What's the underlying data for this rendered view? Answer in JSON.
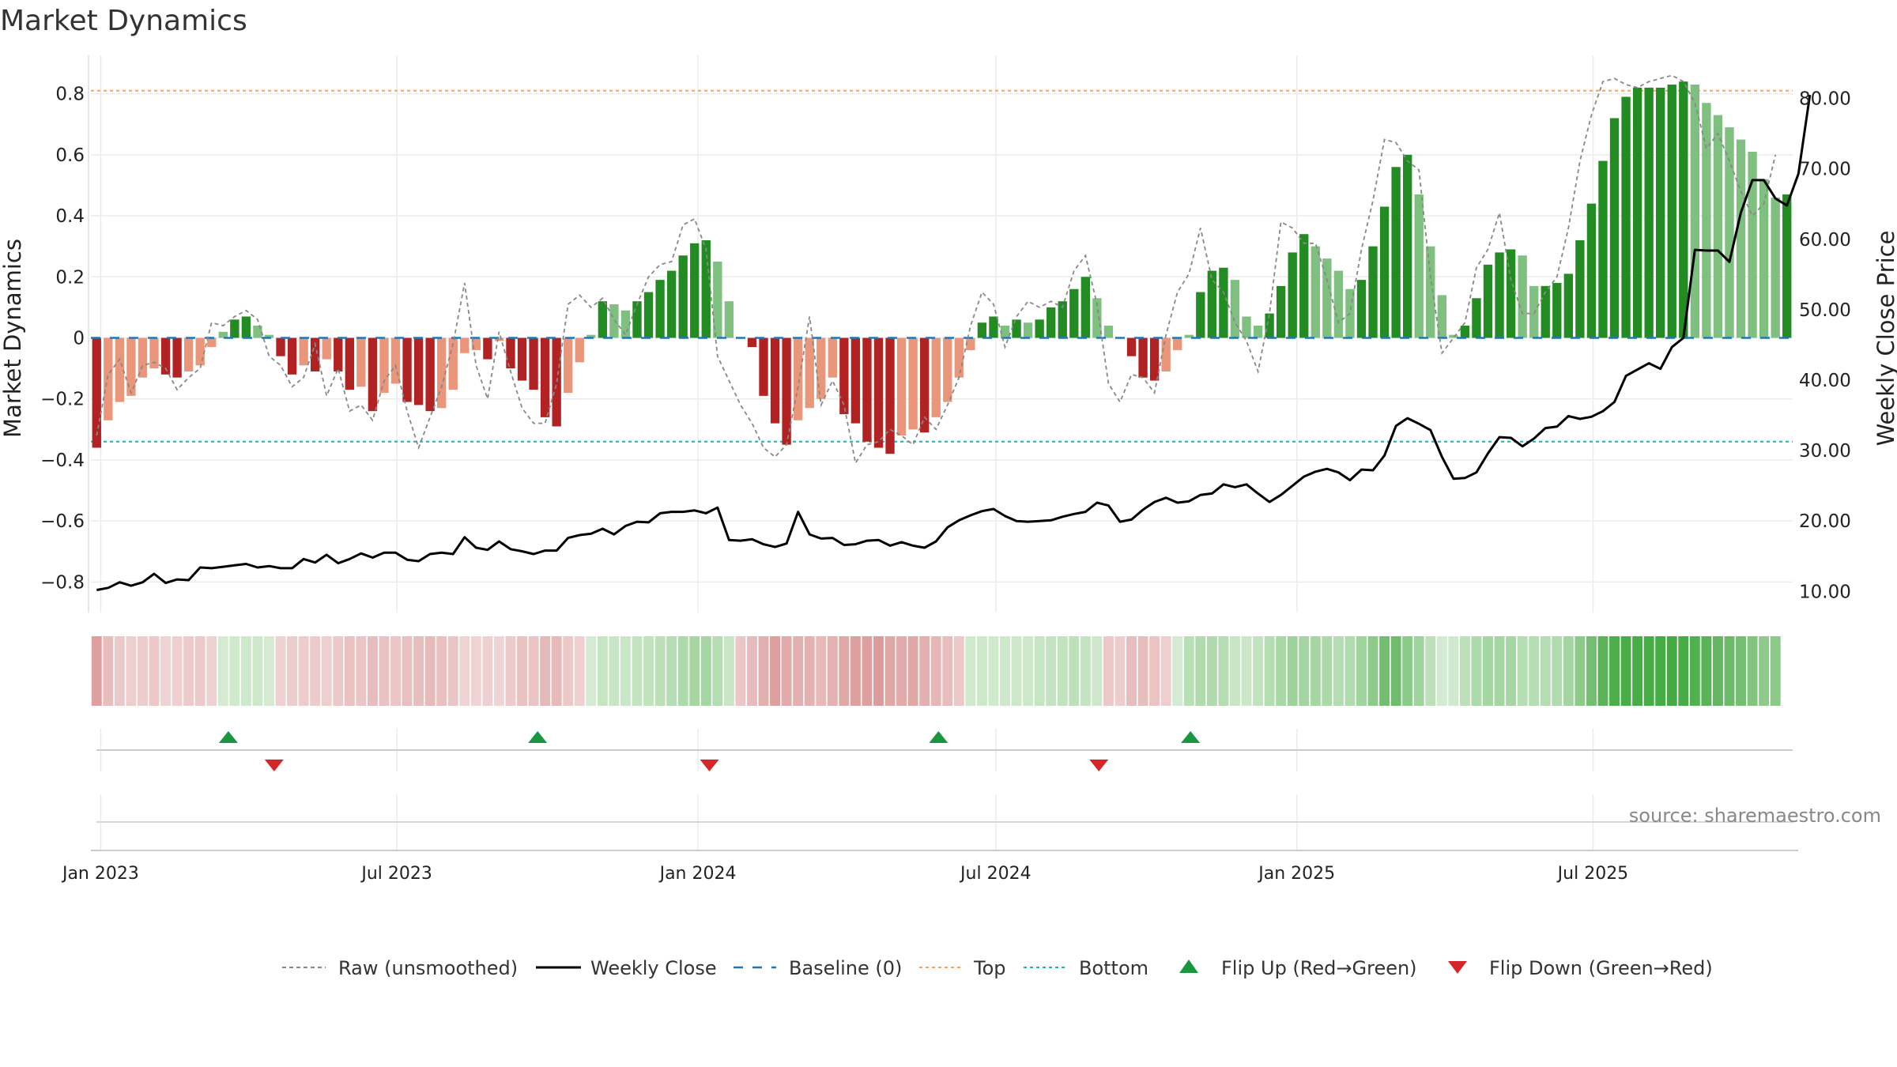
{
  "chart_data": {
    "type": "bar",
    "title": "Market Dynamics",
    "ylabel_left": "Market Dynamics",
    "ylabel_right": "Weekly Close Price",
    "ylim_left": [
      -0.9,
      0.9
    ],
    "ylim_right": [
      7.0,
      85.0
    ],
    "yticks_left": [
      "0.8",
      "0.6",
      "0.4",
      "0.2",
      "0",
      "−0.2",
      "−0.4",
      "−0.6",
      "−0.8"
    ],
    "yticks_right": [
      "80.00",
      "70.00",
      "60.00",
      "50.00",
      "40.00",
      "30.00",
      "20.00",
      "10.00"
    ],
    "x_start": "2022-12-26",
    "x_end": "2025-10-31",
    "xticks": [
      {
        "date": "2023-01-01",
        "label": "Jan 2023"
      },
      {
        "date": "2023-07-01",
        "label": "Jul 2023"
      },
      {
        "date": "2024-01-01",
        "label": "Jan 2024"
      },
      {
        "date": "2024-07-01",
        "label": "Jul 2024"
      },
      {
        "date": "2025-01-01",
        "label": "Jan 2025"
      },
      {
        "date": "2025-07-01",
        "label": "Jul 2025"
      }
    ],
    "top_level": 0.81,
    "bottom_level": -0.34,
    "baseline": 0,
    "market_dynamics": [
      -0.36,
      -0.27,
      -0.21,
      -0.19,
      -0.13,
      -0.1,
      -0.12,
      -0.13,
      -0.11,
      -0.09,
      -0.03,
      0.02,
      0.06,
      0.07,
      0.04,
      0.01,
      -0.06,
      -0.12,
      -0.09,
      -0.11,
      -0.07,
      -0.11,
      -0.17,
      -0.16,
      -0.24,
      -0.18,
      -0.15,
      -0.21,
      -0.22,
      -0.24,
      -0.23,
      -0.17,
      -0.05,
      -0.04,
      -0.07,
      -0.01,
      -0.1,
      -0.14,
      -0.17,
      -0.26,
      -0.29,
      -0.18,
      -0.08,
      0.01,
      0.12,
      0.11,
      0.09,
      0.12,
      0.15,
      0.19,
      0.22,
      0.27,
      0.31,
      0.32,
      0.25,
      0.12,
      0.0,
      -0.03,
      -0.19,
      -0.28,
      -0.35,
      -0.27,
      -0.23,
      -0.2,
      -0.13,
      -0.25,
      -0.28,
      -0.34,
      -0.36,
      -0.38,
      -0.32,
      -0.3,
      -0.31,
      -0.26,
      -0.21,
      -0.13,
      -0.04,
      0.05,
      0.07,
      0.04,
      0.06,
      0.05,
      0.06,
      0.1,
      0.12,
      0.16,
      0.2,
      0.13,
      0.04,
      0.0,
      -0.06,
      -0.13,
      -0.14,
      -0.11,
      -0.04,
      0.01,
      0.15,
      0.22,
      0.23,
      0.19,
      0.07,
      0.04,
      0.08,
      0.17,
      0.28,
      0.34,
      0.3,
      0.26,
      0.22,
      0.16,
      0.19,
      0.3,
      0.43,
      0.56,
      0.6,
      0.47,
      0.3,
      0.14,
      0.01,
      0.04,
      0.13,
      0.24,
      0.28,
      0.29,
      0.27,
      0.17,
      0.17,
      0.18,
      0.21,
      0.32,
      0.44,
      0.58,
      0.72,
      0.79,
      0.82,
      0.82,
      0.82,
      0.83,
      0.84,
      0.83,
      0.77,
      0.73,
      0.69,
      0.65,
      0.61,
      0.52,
      0.46,
      0.47
    ],
    "raw_unsmoothed": [
      -0.32,
      -0.12,
      -0.07,
      -0.18,
      -0.09,
      -0.08,
      -0.1,
      -0.17,
      -0.13,
      -0.1,
      0.05,
      0.04,
      0.07,
      0.09,
      0.06,
      -0.06,
      -0.09,
      -0.16,
      -0.13,
      -0.02,
      -0.19,
      -0.1,
      -0.24,
      -0.22,
      -0.27,
      -0.14,
      -0.09,
      -0.24,
      -0.36,
      -0.26,
      -0.16,
      -0.02,
      0.18,
      -0.09,
      -0.2,
      0.02,
      -0.11,
      -0.23,
      -0.28,
      -0.28,
      -0.15,
      0.11,
      0.14,
      0.1,
      0.13,
      0.06,
      0.01,
      0.11,
      0.2,
      0.24,
      0.25,
      0.37,
      0.39,
      0.29,
      -0.06,
      -0.14,
      -0.22,
      -0.28,
      -0.36,
      -0.39,
      -0.35,
      -0.16,
      0.07,
      -0.22,
      -0.14,
      -0.22,
      -0.41,
      -0.35,
      -0.34,
      -0.3,
      -0.32,
      -0.35,
      -0.26,
      -0.3,
      -0.22,
      -0.13,
      0.04,
      0.15,
      0.11,
      -0.03,
      0.07,
      0.12,
      0.1,
      0.12,
      0.1,
      0.22,
      0.27,
      0.11,
      -0.15,
      -0.21,
      -0.12,
      -0.13,
      -0.18,
      0.01,
      0.15,
      0.21,
      0.36,
      0.19,
      0.15,
      0.05,
      -0.01,
      -0.11,
      0.08,
      0.38,
      0.36,
      0.31,
      0.31,
      0.19,
      0.05,
      0.08,
      0.29,
      0.45,
      0.65,
      0.64,
      0.58,
      0.55,
      0.2,
      -0.05,
      0.0,
      0.05,
      0.23,
      0.29,
      0.41,
      0.19,
      0.08,
      0.08,
      0.15,
      0.2,
      0.36,
      0.58,
      0.73,
      0.84,
      0.85,
      0.83,
      0.82,
      0.84,
      0.85,
      0.86,
      0.84,
      0.77,
      0.62,
      0.67,
      0.58,
      0.48,
      0.4,
      0.44,
      0.6
    ],
    "weekly_close": [
      10.2,
      10.5,
      11.3,
      10.8,
      11.3,
      12.5,
      11.2,
      11.7,
      11.6,
      13.4,
      13.3,
      13.5,
      13.7,
      13.9,
      13.4,
      13.6,
      13.3,
      13.3,
      14.6,
      14.1,
      15.2,
      14.0,
      14.6,
      15.4,
      14.8,
      15.5,
      15.5,
      14.5,
      14.3,
      15.3,
      15.5,
      15.3,
      17.7,
      16.2,
      15.9,
      17.1,
      16.0,
      15.7,
      15.3,
      15.8,
      15.8,
      17.6,
      18.0,
      18.2,
      18.9,
      18.1,
      19.3,
      19.9,
      19.8,
      21.1,
      21.3,
      21.3,
      21.5,
      21.1,
      21.9,
      17.3,
      17.2,
      17.4,
      16.7,
      16.3,
      16.8,
      21.3,
      18.1,
      17.5,
      17.6,
      16.6,
      16.7,
      17.2,
      17.3,
      16.5,
      17.0,
      16.5,
      16.2,
      17.1,
      19.1,
      20.1,
      20.8,
      21.4,
      21.7,
      20.7,
      20.0,
      19.9,
      20.0,
      20.1,
      20.6,
      21.0,
      21.3,
      22.6,
      22.2,
      19.9,
      20.2,
      21.6,
      22.7,
      23.3,
      22.6,
      22.8,
      23.7,
      23.9,
      25.2,
      24.8,
      25.2,
      23.9,
      22.7,
      23.7,
      25.0,
      26.3,
      27.0,
      27.4,
      26.9,
      25.8,
      27.3,
      27.2,
      29.3,
      33.5,
      34.6,
      33.8,
      32.9,
      29.1,
      26.0,
      26.1,
      26.9,
      29.6,
      31.9,
      31.8,
      30.6,
      31.7,
      33.2,
      33.4,
      34.9,
      34.5,
      34.8,
      35.6,
      36.9,
      40.6,
      41.5,
      42.4,
      41.6,
      44.7,
      46.0,
      58.5,
      58.4,
      58.4,
      56.8,
      63.8,
      68.4,
      68.4,
      65.8,
      64.8,
      69.3,
      80.5
    ],
    "regime_bars": [
      {
        "color": "#dd9f9f",
        "op": 1
      },
      {
        "color": "#e8bdbd",
        "op": 1
      },
      {
        "color": "#ecc8c8",
        "op": 1
      },
      {
        "color": "#eecfcf",
        "op": 1
      },
      {
        "color": "#edcccc",
        "op": 1
      },
      {
        "color": "#ecc8c8",
        "op": 1
      },
      {
        "color": "#efd2d2",
        "op": 1
      },
      {
        "color": "#eecece",
        "op": 1
      },
      {
        "color": "#edcbcb",
        "op": 1
      },
      {
        "color": "#edcaca",
        "op": 1
      },
      {
        "color": "#efd1d1",
        "op": 1
      },
      {
        "color": "#d4ead2",
        "op": 1
      },
      {
        "color": "#cfe9cc",
        "op": 1
      },
      {
        "color": "#cde8ca",
        "op": 1
      },
      {
        "color": "#cfe8cc",
        "op": 1
      },
      {
        "color": "#d4ead2",
        "op": 1
      },
      {
        "color": "#efd1d1",
        "op": 1
      },
      {
        "color": "#edcccc",
        "op": 1
      },
      {
        "color": "#edcccc",
        "op": 1
      },
      {
        "color": "#edcbcb",
        "op": 1
      },
      {
        "color": "#eecfcf",
        "op": 1
      },
      {
        "color": "#ecc8c8",
        "op": 1
      },
      {
        "color": "#eac2c2",
        "op": 1
      },
      {
        "color": "#ebc4c4",
        "op": 1
      },
      {
        "color": "#e8bdbd",
        "op": 1
      },
      {
        "color": "#eac2c2",
        "op": 1
      },
      {
        "color": "#ecc6c6",
        "op": 1
      },
      {
        "color": "#e9c0c0",
        "op": 1
      },
      {
        "color": "#e8bdbd",
        "op": 1
      },
      {
        "color": "#e7baba",
        "op": 1
      },
      {
        "color": "#e9c0c0",
        "op": 1
      },
      {
        "color": "#ebc5c5",
        "op": 1
      },
      {
        "color": "#efd3d3",
        "op": 1
      },
      {
        "color": "#efd3d3",
        "op": 1
      },
      {
        "color": "#eed0d0",
        "op": 1
      },
      {
        "color": "#efd4d4",
        "op": 1
      },
      {
        "color": "#edcaca",
        "op": 1
      },
      {
        "color": "#eac2c2",
        "op": 1
      },
      {
        "color": "#eac3c3",
        "op": 1
      },
      {
        "color": "#e6b9b9",
        "op": 1
      },
      {
        "color": "#e7baba",
        "op": 1
      },
      {
        "color": "#ecc8c8",
        "op": 1
      },
      {
        "color": "#eed0d0",
        "op": 1
      },
      {
        "color": "#d4ead2",
        "op": 1
      },
      {
        "color": "#c6e5c3",
        "op": 1
      },
      {
        "color": "#c8e6c5",
        "op": 1
      },
      {
        "color": "#c9e6c6",
        "op": 1
      },
      {
        "color": "#c4e4c1",
        "op": 1
      },
      {
        "color": "#c0e3bd",
        "op": 1
      },
      {
        "color": "#bbe0b8",
        "op": 1
      },
      {
        "color": "#b6deb3",
        "op": 1
      },
      {
        "color": "#addaaa",
        "op": 1
      },
      {
        "color": "#a6d7a3",
        "op": 1
      },
      {
        "color": "#a5d7a2",
        "op": 1
      },
      {
        "color": "#b4ddb1",
        "op": 1
      },
      {
        "color": "#c8e6c5",
        "op": 1
      },
      {
        "color": "#ecc6c6",
        "op": 1
      },
      {
        "color": "#e7bbbb",
        "op": 1
      },
      {
        "color": "#e3b0b0",
        "op": 1
      },
      {
        "color": "#df9f9f",
        "op": 1
      },
      {
        "color": "#e2aaaa",
        "op": 1
      },
      {
        "color": "#e4afaf",
        "op": 1
      },
      {
        "color": "#e5b2b2",
        "op": 1
      },
      {
        "color": "#e7b9b9",
        "op": 1
      },
      {
        "color": "#e4b0b0",
        "op": 1
      },
      {
        "color": "#e1a8a8",
        "op": 1
      },
      {
        "color": "#dda0a0",
        "op": 1
      },
      {
        "color": "#dd9f9f",
        "op": 1
      },
      {
        "color": "#dd9c9c",
        "op": 1
      },
      {
        "color": "#e1a6a6",
        "op": 1
      },
      {
        "color": "#e2aaaa",
        "op": 1
      },
      {
        "color": "#e1a7a7",
        "op": 1
      },
      {
        "color": "#e4afaf",
        "op": 1
      },
      {
        "color": "#e6b7b7",
        "op": 1
      },
      {
        "color": "#e8bdbd",
        "op": 1
      },
      {
        "color": "#ecc8c8",
        "op": 1
      },
      {
        "color": "#cfe9cc",
        "op": 1
      },
      {
        "color": "#cde8ca",
        "op": 1
      },
      {
        "color": "#cfe9cc",
        "op": 1
      },
      {
        "color": "#cde8ca",
        "op": 1
      },
      {
        "color": "#cde8ca",
        "op": 1
      },
      {
        "color": "#cde8ca",
        "op": 1
      },
      {
        "color": "#c6e5c3",
        "op": 1
      },
      {
        "color": "#c4e4c1",
        "op": 1
      },
      {
        "color": "#c0e3bd",
        "op": 1
      },
      {
        "color": "#bce1b9",
        "op": 1
      },
      {
        "color": "#c4e4c1",
        "op": 1
      },
      {
        "color": "#cde8ca",
        "op": 1
      },
      {
        "color": "#ecc8c8",
        "op": 1
      },
      {
        "color": "#edcccc",
        "op": 1
      },
      {
        "color": "#e8bdbd",
        "op": 1
      },
      {
        "color": "#e8bdbd",
        "op": 1
      },
      {
        "color": "#ebc3c3",
        "op": 1
      },
      {
        "color": "#eecece",
        "op": 1
      },
      {
        "color": "#d4ead2",
        "op": 1
      },
      {
        "color": "#b8dfb5",
        "op": 1
      },
      {
        "color": "#b0dbad",
        "op": 1
      },
      {
        "color": "#afdbac",
        "op": 1
      },
      {
        "color": "#b4ddb1",
        "op": 1
      },
      {
        "color": "#c8e6c5",
        "op": 1
      },
      {
        "color": "#cbe7c8",
        "op": 1
      },
      {
        "color": "#c2e3bf",
        "op": 1
      },
      {
        "color": "#b4ddb1",
        "op": 1
      },
      {
        "color": "#a8d8a5",
        "op": 1
      },
      {
        "color": "#9dd39a",
        "op": 1
      },
      {
        "color": "#a2d59f",
        "op": 1
      },
      {
        "color": "#a6d7a3",
        "op": 1
      },
      {
        "color": "#abd9a8",
        "op": 1
      },
      {
        "color": "#b4ddb1",
        "op": 1
      },
      {
        "color": "#b0dbad",
        "op": 1
      },
      {
        "color": "#a0d49d",
        "op": 1
      },
      {
        "color": "#8ecb8b",
        "op": 1
      },
      {
        "color": "#73be70",
        "op": 1
      },
      {
        "color": "#6fbc6c",
        "op": 1
      },
      {
        "color": "#8acb87",
        "op": 1
      },
      {
        "color": "#a0d49d",
        "op": 1
      },
      {
        "color": "#bce1b9",
        "op": 1
      },
      {
        "color": "#d4ead2",
        "op": 1
      },
      {
        "color": "#cfe9cc",
        "op": 1
      },
      {
        "color": "#bce1b9",
        "op": 1
      },
      {
        "color": "#addaaa",
        "op": 1
      },
      {
        "color": "#a4d6a1",
        "op": 1
      },
      {
        "color": "#a4d6a1",
        "op": 1
      },
      {
        "color": "#a6d7a3",
        "op": 1
      },
      {
        "color": "#b6deb3",
        "op": 1
      },
      {
        "color": "#b6deb3",
        "op": 1
      },
      {
        "color": "#b4ddb1",
        "op": 1
      },
      {
        "color": "#b0dbad",
        "op": 1
      },
      {
        "color": "#a2d59f",
        "op": 1
      },
      {
        "color": "#8ecb8b",
        "op": 1
      },
      {
        "color": "#73be70",
        "op": 1
      },
      {
        "color": "#5cb459",
        "op": 1
      },
      {
        "color": "#4caf4a",
        "op": 1
      },
      {
        "color": "#47ad45",
        "op": 1
      },
      {
        "color": "#47ad45",
        "op": 1
      },
      {
        "color": "#47ad45",
        "op": 1
      },
      {
        "color": "#46ac44",
        "op": 1
      },
      {
        "color": "#44ab42",
        "op": 1
      },
      {
        "color": "#46ac44",
        "op": 1
      },
      {
        "color": "#52b14f",
        "op": 1
      },
      {
        "color": "#5ab457",
        "op": 1
      },
      {
        "color": "#62b75f",
        "op": 1
      },
      {
        "color": "#6bbb68",
        "op": 1
      },
      {
        "color": "#73be70",
        "op": 1
      },
      {
        "color": "#82c57f",
        "op": 1
      },
      {
        "color": "#8ecb8b",
        "op": 1
      },
      {
        "color": "#8dca8a",
        "op": 1
      }
    ],
    "flip_up_dates": [
      "2023-03-20",
      "2023-09-25",
      "2024-05-27",
      "2024-10-28"
    ],
    "flip_down_dates": [
      "2023-04-17",
      "2024-01-08",
      "2024-09-02"
    ],
    "legend": [
      "Raw (unsmoothed)",
      "Weekly Close",
      "Baseline (0)",
      "Top",
      "Bottom",
      "Flip Up (Red→Green)",
      "Flip Down (Green→Red)"
    ],
    "legend_placement": "bottom-center",
    "grid": true
  },
  "source": "source: sharemaestro.com",
  "colors": {
    "bar_red_strong": "#b22222",
    "bar_red_light": "#e9967a",
    "bar_green_strong": "#228b22",
    "bar_green_light": "#7fbf7f",
    "raw_line": "#888888",
    "close_line": "#000000",
    "baseline": "#1f77b4",
    "top": "#f4a460",
    "bottom": "#20b2aa",
    "flip_up": "#1a9641",
    "flip_down": "#d62728"
  }
}
